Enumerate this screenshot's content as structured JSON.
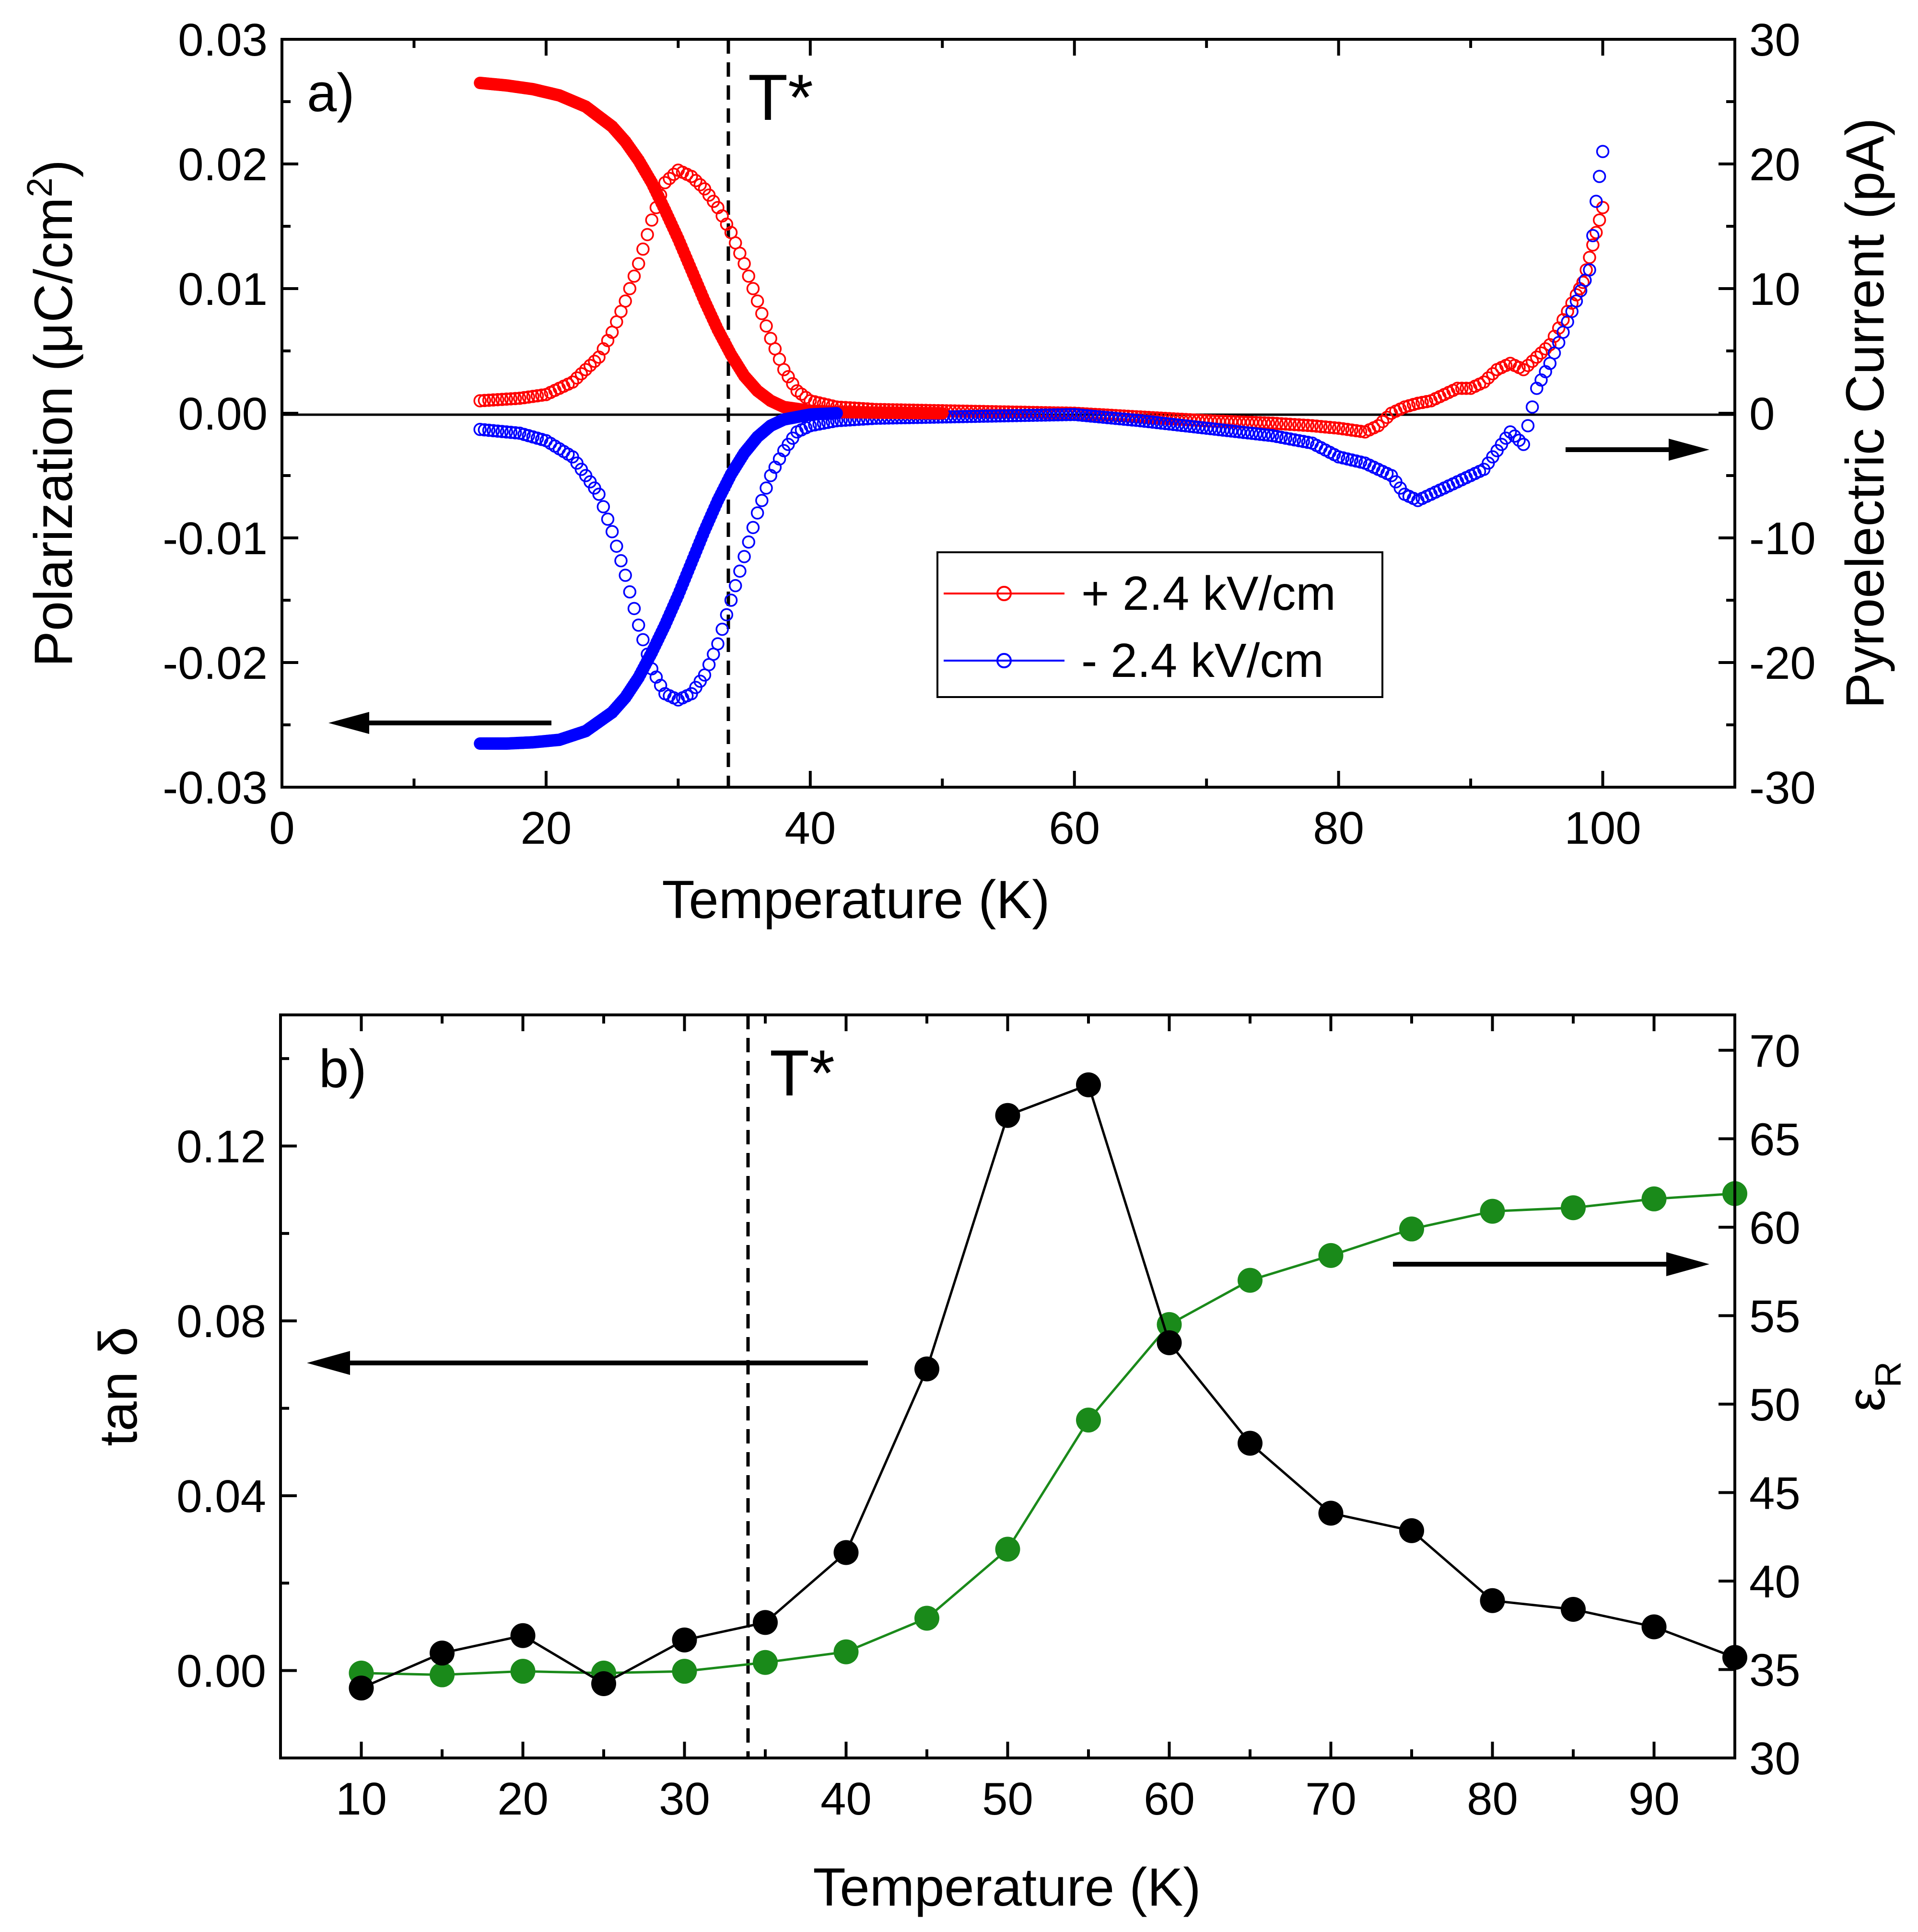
{
  "figure": {
    "panel_a": {
      "label": "a)",
      "marker_label": "T*",
      "xlabel": "Temperature (K)",
      "ylabel_left": "Polarization (μC/cm",
      "ylabel_left_sup": "2",
      "ylabel_left_end": ")",
      "ylabel_right": "Pyroelectric Current (pA)",
      "legend": [
        "+ 2.4 kV/cm",
        "- 2.4 kV/cm"
      ]
    },
    "panel_b": {
      "label": "b)",
      "marker_label": "T*",
      "xlabel": "Temperature (K)",
      "ylabel_left": "tan δ",
      "ylabel_right": "ε",
      "ylabel_right_sub": "R"
    }
  },
  "colors": {
    "positive_field": "#ff0000",
    "negative_field": "#0000ff",
    "tan_delta": "#000000",
    "epsilon_r": "#1a8a1a"
  },
  "chart_data": [
    {
      "type": "scatter",
      "title": "a)",
      "xlabel": "Temperature (K)",
      "ylabel": "Polarization (μC/cm2)",
      "ylabel_right": "Pyroelectric Current (pA)",
      "xlim": [
        0,
        110
      ],
      "ylim": [
        -0.03,
        0.03
      ],
      "ylim_right": [
        -30,
        30
      ],
      "xticks": [
        0,
        20,
        40,
        60,
        80,
        100
      ],
      "yticks": [
        -0.03,
        -0.02,
        -0.01,
        0.0,
        0.01,
        0.02,
        0.03
      ],
      "ytick_labels": [
        "-0.03",
        "-0.02",
        "-0.01",
        "0.00",
        "0.01",
        "0.02",
        "0.03"
      ],
      "yticks_right": [
        -30,
        -20,
        -10,
        0,
        10,
        20,
        30
      ],
      "tstar_K": 33.8,
      "series": [
        {
          "name": "Polarization, + 2.4 kV/cm",
          "axis": "left",
          "style": "filled",
          "color": "#ff0000",
          "x": [
            15,
            17,
            19,
            21,
            23,
            25,
            26,
            27,
            28,
            29,
            30,
            31,
            32,
            33,
            34,
            35,
            36,
            37,
            38,
            40,
            42,
            45,
            50
          ],
          "y": [
            0.0265,
            0.0263,
            0.026,
            0.0255,
            0.0246,
            0.023,
            0.0218,
            0.0203,
            0.0185,
            0.0163,
            0.014,
            0.0115,
            0.009,
            0.0067,
            0.0047,
            0.003,
            0.0018,
            0.001,
            0.0005,
            0.0002,
            0.0001,
            5e-05,
            0.0
          ]
        },
        {
          "name": "Polarization, - 2.4 kV/cm",
          "axis": "left",
          "style": "filled",
          "color": "#0000ff",
          "x": [
            15,
            17,
            19,
            21,
            23,
            25,
            26,
            27,
            28,
            29,
            30,
            31,
            32,
            33,
            34,
            35,
            36,
            37,
            38,
            40,
            42
          ],
          "y": [
            -0.0265,
            -0.0265,
            -0.0264,
            -0.0262,
            -0.0255,
            -0.024,
            -0.0228,
            -0.0212,
            -0.0192,
            -0.017,
            -0.0146,
            -0.012,
            -0.0094,
            -0.007,
            -0.0049,
            -0.0032,
            -0.0019,
            -0.001,
            -0.0005,
            -0.0001,
            0.0
          ]
        },
        {
          "name": "+ 2.4 kV/cm",
          "axis": "right",
          "style": "open",
          "color": "#ff0000",
          "x": [
            15,
            18,
            20,
            22,
            24,
            25,
            26,
            27,
            28,
            29,
            30,
            31,
            32,
            33,
            34,
            35,
            36,
            37,
            38,
            39,
            40,
            42,
            45,
            50,
            55,
            60,
            65,
            70,
            75,
            78,
            80,
            82,
            83,
            84,
            85,
            86,
            87,
            88,
            89,
            90,
            91,
            92,
            93,
            94,
            95,
            96,
            97,
            98,
            98.5,
            99,
            99.5,
            100
          ],
          "y": [
            1.0,
            1.2,
            1.5,
            2.5,
            4.5,
            6.5,
            9,
            12,
            15.5,
            18.5,
            19.5,
            19.0,
            18.0,
            16.5,
            14.5,
            12.0,
            9.0,
            6.0,
            3.5,
            1.8,
            1.0,
            0.5,
            0.3,
            0.2,
            0.1,
            0.0,
            -0.3,
            -0.6,
            -0.8,
            -1.0,
            -1.2,
            -1.5,
            -1.0,
            0.0,
            0.5,
            0.8,
            1.0,
            1.5,
            2.0,
            2.0,
            2.5,
            3.5,
            4.0,
            3.5,
            4.5,
            5.5,
            7.5,
            9.5,
            10.5,
            12.5,
            14.5,
            16.5
          ]
        },
        {
          "name": "- 2.4 kV/cm",
          "axis": "right",
          "style": "open",
          "color": "#0000ff",
          "x": [
            15,
            18,
            20,
            22,
            24,
            25,
            26,
            27,
            28,
            29,
            30,
            31,
            32,
            33,
            34,
            35,
            36,
            37,
            38,
            39,
            40,
            42,
            45,
            50,
            55,
            60,
            65,
            70,
            75,
            78,
            80,
            82,
            84,
            85,
            86,
            87,
            88,
            89,
            90,
            91,
            92,
            93,
            94,
            95,
            96,
            97,
            98,
            99,
            99.5,
            100
          ],
          "y": [
            -1.3,
            -1.6,
            -2.2,
            -3.5,
            -6.5,
            -9.5,
            -13,
            -17,
            -20.5,
            -22.5,
            -23.0,
            -22.5,
            -21.0,
            -18.5,
            -15.0,
            -11.5,
            -8.0,
            -5.0,
            -3.0,
            -1.5,
            -1.0,
            -0.6,
            -0.4,
            -0.3,
            -0.2,
            -0.1,
            -0.6,
            -1.2,
            -1.8,
            -2.4,
            -3.5,
            -4.0,
            -5.0,
            -6.5,
            -7.0,
            -6.5,
            -6.0,
            -5.5,
            -5.0,
            -4.5,
            -3.0,
            -1.5,
            -2.5,
            2.0,
            4.0,
            6.5,
            9.0,
            11.5,
            17.0,
            21.0
          ]
        }
      ]
    },
    {
      "type": "line",
      "title": "b)",
      "xlabel": "Temperature (K)",
      "ylabel": "tan δ",
      "ylabel_right": "εR",
      "xlim": [
        5,
        95
      ],
      "ylim": [
        -0.02,
        0.15
      ],
      "ylim_right": [
        30,
        72
      ],
      "xticks": [
        10,
        20,
        30,
        40,
        50,
        60,
        70,
        80,
        90
      ],
      "yticks": [
        0.0,
        0.04,
        0.08,
        0.12
      ],
      "ytick_labels": [
        "0.00",
        "0.04",
        "0.08",
        "0.12"
      ],
      "yticks_right": [
        30,
        35,
        40,
        45,
        50,
        55,
        60,
        65,
        70
      ],
      "tstar_K": 34,
      "categories": [
        10,
        15,
        20,
        25,
        30,
        35,
        40,
        45,
        50,
        55,
        60,
        65,
        70,
        75,
        80,
        85,
        90,
        95
      ],
      "series": [
        {
          "name": "tan δ",
          "axis": "left",
          "color": "#000000",
          "x": [
            10,
            15,
            20,
            25,
            30,
            35,
            40,
            45,
            50,
            55,
            60,
            65,
            70,
            75,
            80,
            85,
            90,
            95
          ],
          "values": [
            -0.004,
            0.004,
            0.008,
            -0.003,
            0.007,
            0.011,
            0.027,
            0.069,
            0.127,
            0.134,
            0.075,
            0.052,
            0.036,
            0.032,
            0.016,
            0.014,
            0.01,
            0.003
          ]
        },
        {
          "name": "εR",
          "axis": "right",
          "color": "#1a8a1a",
          "x": [
            10,
            15,
            20,
            25,
            30,
            35,
            40,
            45,
            50,
            55,
            60,
            65,
            70,
            75,
            80,
            85,
            90,
            95
          ],
          "values": [
            34.8,
            34.7,
            34.9,
            34.8,
            34.9,
            35.4,
            36.0,
            37.9,
            41.8,
            49.1,
            54.5,
            57.0,
            58.4,
            59.9,
            60.9,
            61.1,
            61.6,
            61.9
          ]
        }
      ]
    }
  ]
}
